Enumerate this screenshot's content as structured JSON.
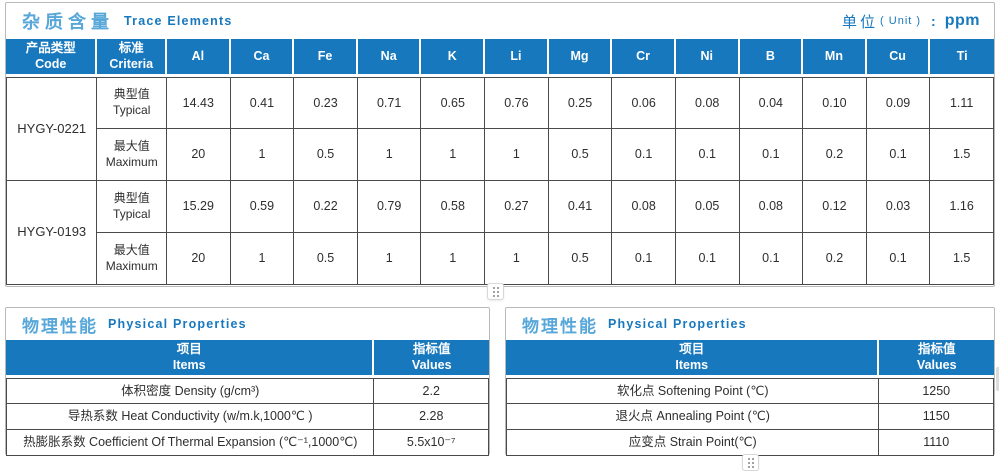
{
  "colors": {
    "header_blue": "#1878be",
    "title_blue_zh": "#58a7d9",
    "title_blue_en": "#1878be",
    "cell_border": "#4a4a4a",
    "frame_gray": "#b9b9b9"
  },
  "trace": {
    "title_zh": "杂质含量",
    "title_en": "Trace Elements",
    "unit_zh": "单位",
    "unit_paren": "( Unit )",
    "unit_colon": ":",
    "unit_value": "ppm",
    "headers": {
      "code_zh": "产品类型",
      "code_en": "Code",
      "criteria_zh": "标准",
      "criteria_en": "Criteria"
    },
    "labels": {
      "typical_zh": "典型值",
      "typical_en": "Typical",
      "maximum_zh": "最大值",
      "maximum_en": "Maximum"
    },
    "columns": [
      "Al",
      "Ca",
      "Fe",
      "Na",
      "K",
      "Li",
      "Mg",
      "Cr",
      "Ni",
      "B",
      "Mn",
      "Cu",
      "Ti"
    ],
    "products": [
      {
        "code": "HYGY-0221",
        "typical": [
          "14.43",
          "0.41",
          "0.23",
          "0.71",
          "0.65",
          "0.76",
          "0.25",
          "0.06",
          "0.08",
          "0.04",
          "0.10",
          "0.09",
          "1.11"
        ],
        "maximum": [
          "20",
          "1",
          "0.5",
          "1",
          "1",
          "1",
          "0.5",
          "0.1",
          "0.1",
          "0.1",
          "0.2",
          "0.1",
          "1.5"
        ]
      },
      {
        "code": "HYGY-0193",
        "typical": [
          "15.29",
          "0.59",
          "0.22",
          "0.79",
          "0.58",
          "0.27",
          "0.41",
          "0.08",
          "0.05",
          "0.08",
          "0.12",
          "0.03",
          "1.16"
        ],
        "maximum": [
          "20",
          "1",
          "0.5",
          "1",
          "1",
          "1",
          "0.5",
          "0.1",
          "0.1",
          "0.1",
          "0.2",
          "0.1",
          "1.5"
        ]
      }
    ]
  },
  "physical_left": {
    "title_zh": "物理性能",
    "title_en": "Physical Properties",
    "items_zh": "项目",
    "items_en": "Items",
    "values_zh": "指标值",
    "values_en": "Values",
    "rows": [
      {
        "item": "体积密度 Density (g/cm³)",
        "value": "2.2"
      },
      {
        "item": "导热系数 Heat Conductivity (w/m.k,1000℃ )",
        "value": "2.28"
      },
      {
        "item": "热膨胀系数 Coefficient Of Thermal Expansion (℃⁻¹,1000℃)",
        "value": "5.5x10⁻⁷"
      }
    ]
  },
  "physical_right": {
    "title_zh": "物理性能",
    "title_en": "Physical Properties",
    "items_zh": "项目",
    "items_en": "Items",
    "values_zh": "指标值",
    "values_en": "Values",
    "rows": [
      {
        "item": "软化点 Softening Point (℃)",
        "value": "1250"
      },
      {
        "item": "退火点 Annealing Point (℃)",
        "value": "1150"
      },
      {
        "item": "应变点 Strain Point(℃)",
        "value": "1110"
      }
    ]
  }
}
